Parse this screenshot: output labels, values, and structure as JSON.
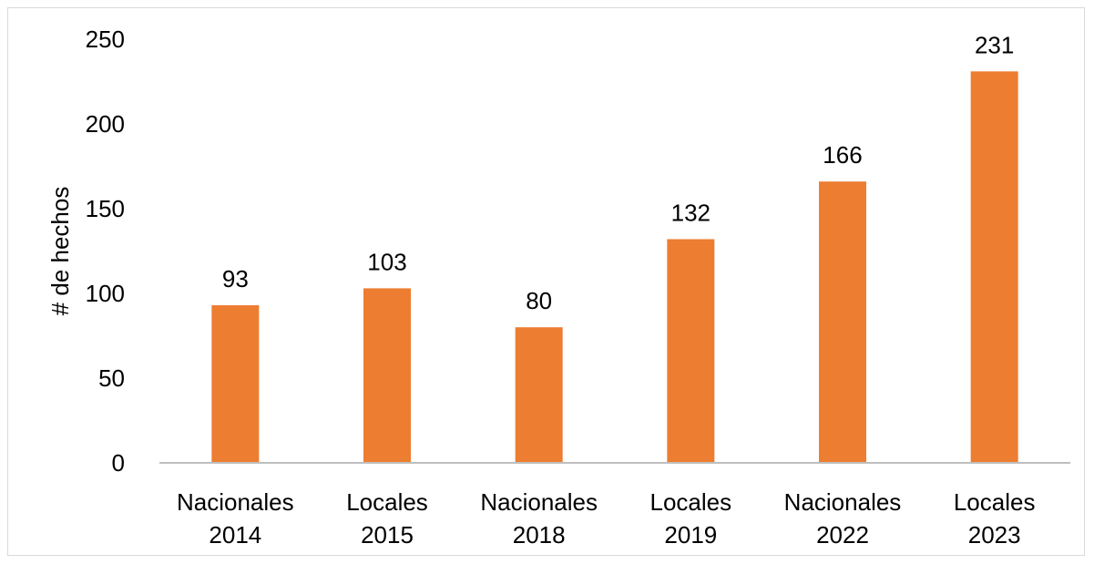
{
  "chart_data": {
    "type": "bar",
    "categories": [
      [
        "Nacionales",
        "2014"
      ],
      [
        "Locales",
        "2015"
      ],
      [
        "Nacionales",
        "2018"
      ],
      [
        "Locales",
        "2019"
      ],
      [
        "Nacionales",
        "2022"
      ],
      [
        "Locales",
        "2023"
      ]
    ],
    "values": [
      93,
      103,
      80,
      132,
      166,
      231
    ],
    "ylabel": "# de hechos",
    "xlabel": "",
    "title": "",
    "ylim": [
      0,
      250
    ],
    "yticks": [
      0,
      50,
      100,
      150,
      200,
      250
    ],
    "grid": false,
    "data_labels": true,
    "bar_color": "#ED7D31",
    "axis_color": "#bfbfbf"
  }
}
